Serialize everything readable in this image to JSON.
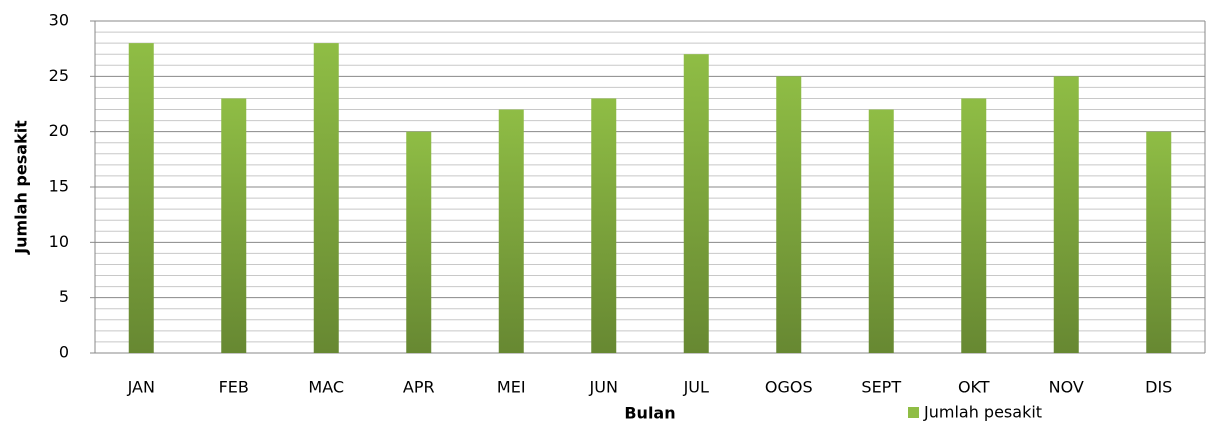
{
  "chart_data": {
    "type": "bar",
    "x_label": "Bulan",
    "y_label": "Jumlah pesakit",
    "categories": [
      "JAN",
      "FEB",
      "MAC",
      "APR",
      "MEI",
      "JUN",
      "JUL",
      "OGOS",
      "SEPT",
      "OKT",
      "NOV",
      "DIS"
    ],
    "series": [
      {
        "name": "Jumlah pesakit",
        "color": "#8fbd45",
        "values": [
          28,
          23,
          28,
          20,
          22,
          23,
          27,
          25,
          22,
          23,
          25,
          20
        ]
      }
    ],
    "ylim": [
      0,
      30
    ],
    "yticks": [
      0,
      5,
      10,
      15,
      20,
      25,
      30
    ],
    "minor_yticks": [
      1,
      2,
      3,
      4,
      6,
      7,
      8,
      9,
      11,
      12,
      13,
      14,
      16,
      17,
      18,
      19,
      21,
      22,
      23,
      24,
      26,
      27,
      28,
      29
    ],
    "grid": true,
    "legend": "bottom-right"
  }
}
